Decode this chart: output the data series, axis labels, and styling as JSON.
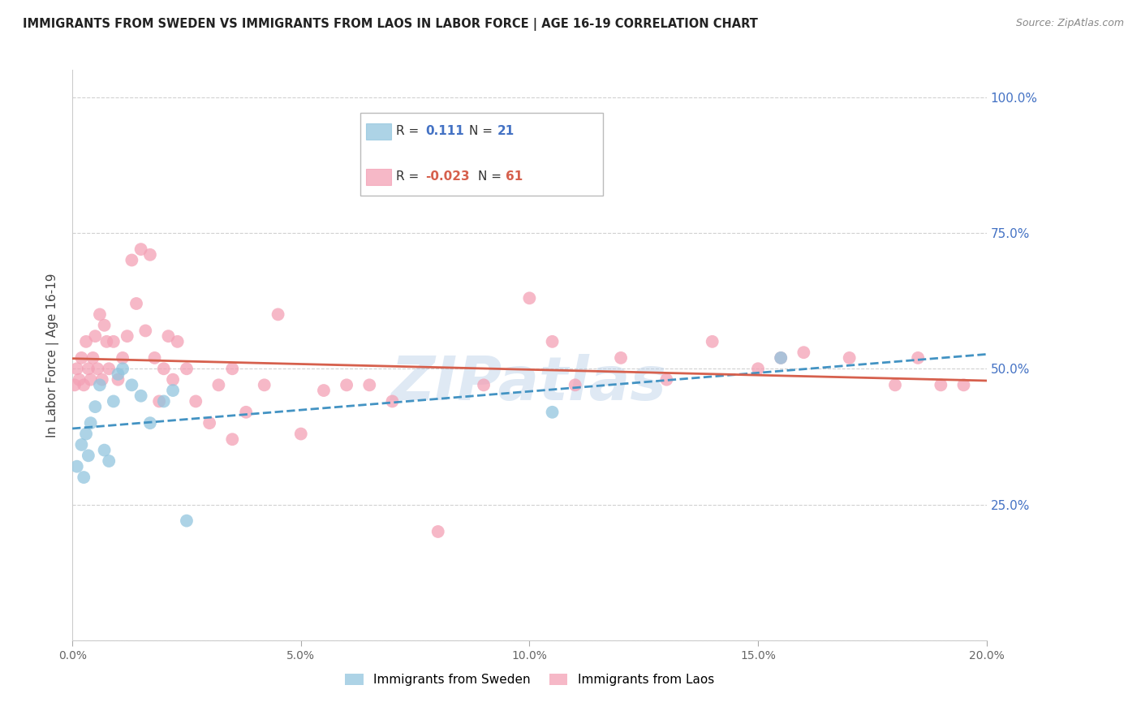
{
  "title": "IMMIGRANTS FROM SWEDEN VS IMMIGRANTS FROM LAOS IN LABOR FORCE | AGE 16-19 CORRELATION CHART",
  "source": "Source: ZipAtlas.com",
  "ylabel": "In Labor Force | Age 16-19",
  "xlim": [
    0.0,
    20.0
  ],
  "ylim": [
    0.0,
    105.0
  ],
  "sweden_color": "#92c5de",
  "laos_color": "#f4a0b5",
  "sweden_trend_color": "#4393c3",
  "laos_trend_color": "#d6604d",
  "sweden_R": 0.111,
  "sweden_N": 21,
  "laos_R": -0.023,
  "laos_N": 61,
  "watermark": "ZIPatlas",
  "legend_label_sweden": "Immigrants from Sweden",
  "legend_label_laos": "Immigrants from Laos",
  "sweden_x": [
    0.1,
    0.2,
    0.25,
    0.3,
    0.35,
    0.4,
    0.5,
    0.6,
    0.7,
    0.8,
    0.9,
    1.0,
    1.1,
    1.3,
    1.5,
    1.7,
    2.0,
    2.2,
    2.5,
    10.5,
    15.5
  ],
  "sweden_y": [
    32,
    36,
    30,
    38,
    34,
    40,
    43,
    47,
    35,
    33,
    44,
    49,
    50,
    47,
    45,
    40,
    44,
    46,
    22,
    42,
    52
  ],
  "laos_x": [
    0.05,
    0.1,
    0.15,
    0.2,
    0.25,
    0.3,
    0.35,
    0.4,
    0.45,
    0.5,
    0.55,
    0.6,
    0.65,
    0.7,
    0.75,
    0.8,
    0.9,
    1.0,
    1.1,
    1.2,
    1.3,
    1.4,
    1.5,
    1.6,
    1.7,
    1.8,
    1.9,
    2.0,
    2.1,
    2.2,
    2.3,
    2.5,
    2.7,
    3.0,
    3.2,
    3.5,
    3.8,
    4.2,
    4.5,
    5.0,
    5.5,
    6.0,
    6.5,
    7.0,
    8.0,
    9.0,
    10.0,
    10.5,
    11.0,
    12.0,
    13.0,
    14.0,
    15.0,
    15.5,
    16.0,
    17.0,
    18.0,
    18.5,
    19.0,
    19.5,
    3.5
  ],
  "laos_y": [
    47,
    50,
    48,
    52,
    47,
    55,
    50,
    48,
    52,
    56,
    50,
    60,
    48,
    58,
    55,
    50,
    55,
    48,
    52,
    56,
    70,
    62,
    72,
    57,
    71,
    52,
    44,
    50,
    56,
    48,
    55,
    50,
    44,
    40,
    47,
    50,
    42,
    47,
    60,
    38,
    46,
    47,
    47,
    44,
    20,
    47,
    63,
    55,
    47,
    52,
    48,
    55,
    50,
    52,
    53,
    52,
    47,
    52,
    47,
    47,
    37
  ]
}
